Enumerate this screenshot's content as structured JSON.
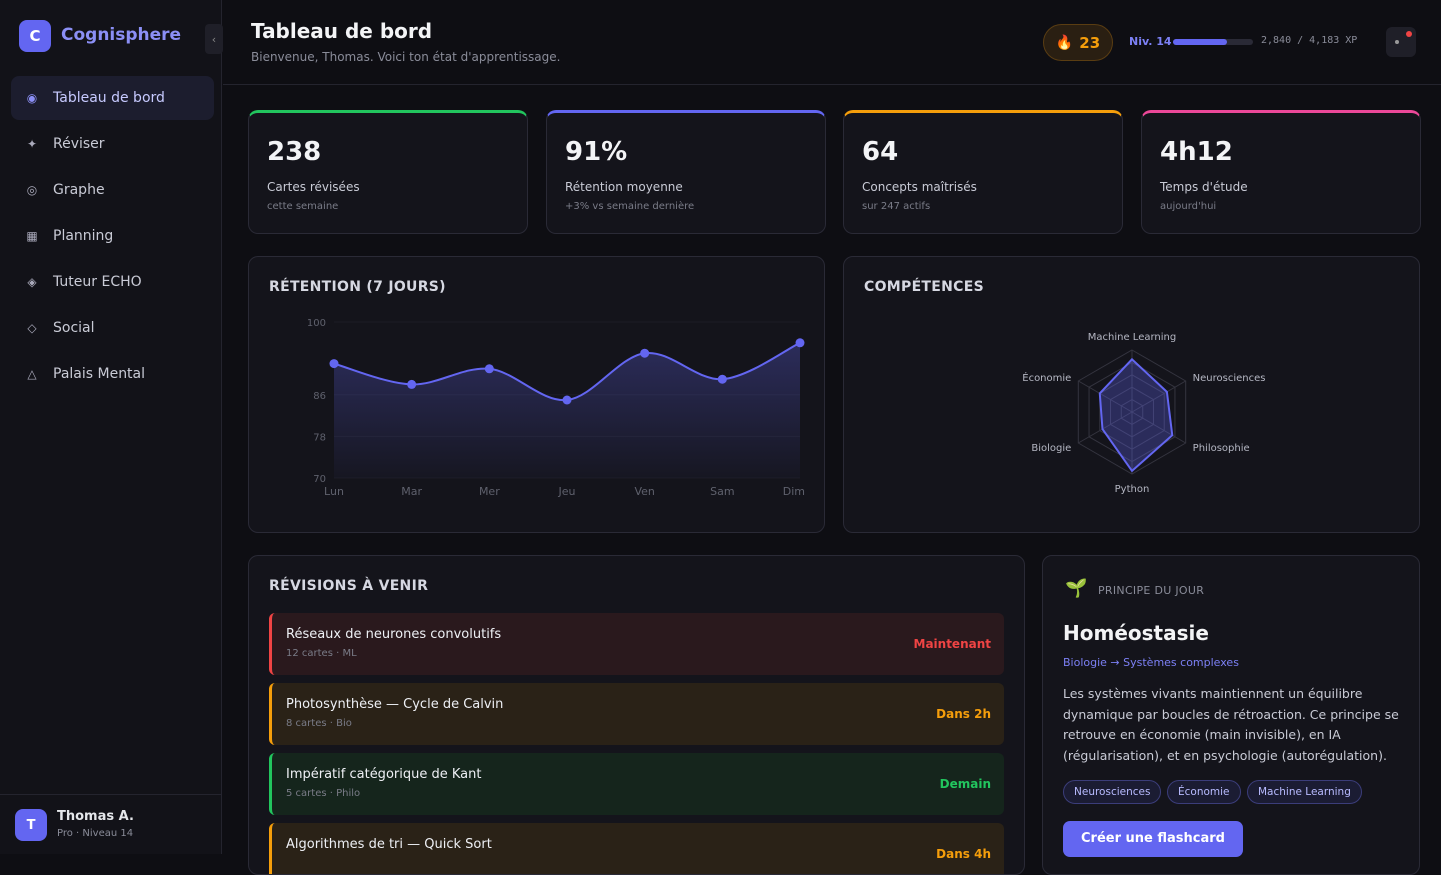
{
  "sidebar": {
    "logo_letter": "C",
    "brand": "Cognisphere",
    "collapse": "‹",
    "nav": [
      {
        "icon": "◉",
        "label": "Tableau de bord",
        "active": true
      },
      {
        "icon": "✦",
        "label": "Réviser"
      },
      {
        "icon": "◎",
        "label": "Graphe"
      },
      {
        "icon": "▦",
        "label": "Planning"
      },
      {
        "icon": "◈",
        "label": "Tuteur ECHO"
      },
      {
        "icon": "◇",
        "label": "Social"
      },
      {
        "icon": "△",
        "label": "Palais Mental"
      }
    ],
    "user": {
      "avatar": "T",
      "name": "Thomas A.",
      "plan": "Pro · Niveau 14"
    }
  },
  "header": {
    "title": "Tableau de bord",
    "subtitle": "Bienvenue, Thomas. Voici ton état d'apprentissage.",
    "streak_icon": "🔥",
    "streak": "23",
    "level": "Niv. 14",
    "xp": {
      "current": 2840,
      "max": 4183,
      "label": "2,840 / 4,183 XP"
    }
  },
  "stats": [
    {
      "value": "238",
      "label": "Cartes révisées",
      "sub": "cette semaine",
      "color": "#22c55e"
    },
    {
      "value": "91%",
      "label": "Rétention moyenne",
      "sub": "+3% vs semaine dernière",
      "color": "#6366f1"
    },
    {
      "value": "64",
      "label": "Concepts maîtrisés",
      "sub": "sur 247 actifs",
      "color": "#f59e0b"
    },
    {
      "value": "4h12",
      "label": "Temps d'étude",
      "sub": "aujourd'hui",
      "color": "#ec4899"
    }
  ],
  "retention": {
    "type": "line",
    "title": "RÉTENTION (7 JOURS)",
    "categories": [
      "Lun",
      "Mar",
      "Mer",
      "Jeu",
      "Ven",
      "Sam",
      "Dim"
    ],
    "values": [
      92,
      88,
      91,
      85,
      94,
      89,
      96
    ],
    "color": "#6366f1",
    "ylim": [
      70,
      100
    ],
    "yticks": [
      70,
      78,
      86,
      100
    ]
  },
  "skills": {
    "type": "radar",
    "title": "COMPÉTENCES",
    "categories": [
      "Machine Learning",
      "Neurosciences",
      "Philosophie",
      "Python",
      "Biologie",
      "Économie"
    ],
    "values": [
      85,
      65,
      75,
      95,
      55,
      60
    ],
    "color": "#6366f1",
    "rlim": [
      0,
      100
    ],
    "rticks": [
      20,
      40,
      60,
      80,
      100
    ]
  },
  "revisions": {
    "title": "RÉVISIONS À VENIR",
    "items": [
      {
        "title": "Réseaux de neurones convolutifs",
        "meta": "12 cartes · ML",
        "when": "Maintenant",
        "color": "#ef4444",
        "bg": "#2a191d"
      },
      {
        "title": "Photosynthèse — Cycle de Calvin",
        "meta": "8 cartes · Bio",
        "when": "Dans 2h",
        "color": "#f59e0b",
        "bg": "#2a2217"
      },
      {
        "title": "Impératif catégorique de Kant",
        "meta": "5 cartes · Philo",
        "when": "Demain",
        "color": "#22c55e",
        "bg": "#15251c"
      },
      {
        "title": "Algorithmes de tri — Quick Sort",
        "when": "Dans 4h",
        "color": "#f59e0b",
        "bg": "#2a2217"
      }
    ]
  },
  "principle": {
    "icon": "🌱",
    "kicker": "PRINCIPE DU JOUR",
    "title": "Homéostasie",
    "path": "Biologie → Systèmes complexes",
    "text": "Les systèmes vivants maintiennent un équilibre dynamique par boucles de rétroaction. Ce principe se retrouve en économie (main invisible), en IA (régularisation), et en psychologie (autorégulation).",
    "tags": [
      "Neurosciences",
      "Économie",
      "Machine Learning"
    ],
    "button": "Créer une flashcard"
  }
}
